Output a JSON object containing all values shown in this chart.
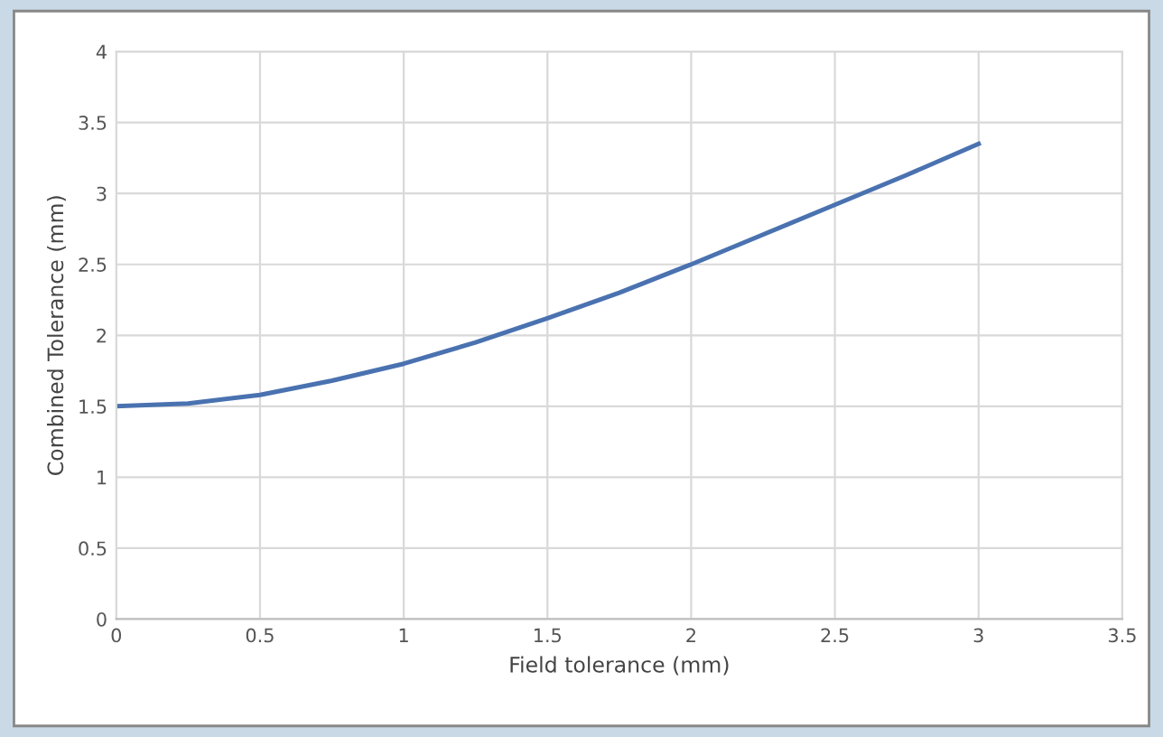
{
  "chart_data": {
    "type": "line",
    "xlabel": "Field tolerance (mm)",
    "ylabel": "Combined Tolerance (mm)",
    "x": [
      0,
      0.25,
      0.5,
      0.75,
      1,
      1.25,
      1.5,
      1.75,
      2,
      2.25,
      2.5,
      2.75,
      3
    ],
    "series": [
      {
        "color": "#4a72b0",
        "values": [
          1.5,
          1.52,
          1.58,
          1.68,
          1.8,
          1.95,
          2.12,
          2.3,
          2.5,
          2.71,
          2.92,
          3.13,
          3.35
        ]
      }
    ],
    "xlim": [
      0,
      3.5
    ],
    "xticks": [
      0,
      0.5,
      1,
      1.5,
      2,
      2.5,
      3,
      3.5
    ],
    "ylim": [
      0,
      4
    ],
    "yticks": [
      0,
      0.5,
      1,
      1.5,
      2,
      2.5,
      3,
      3.5,
      4
    ],
    "grid": true,
    "legend": false,
    "marker": "none",
    "line_style": "solid"
  }
}
